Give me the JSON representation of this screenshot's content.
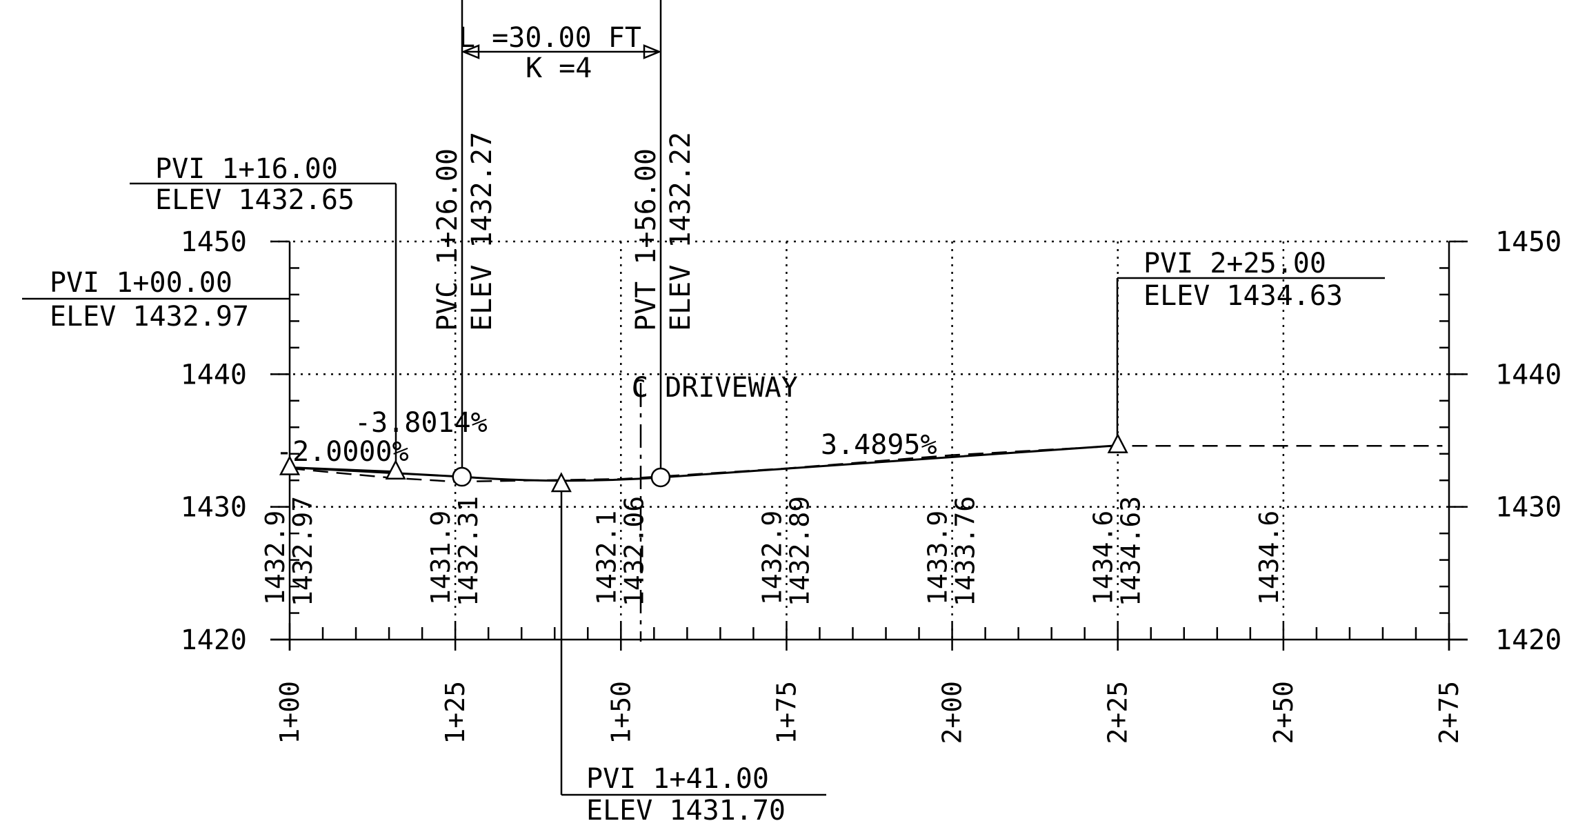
{
  "vertical_curve": {
    "length_label": "L =30.00 FT",
    "k_label": "K =4"
  },
  "pvis": [
    {
      "station_label": "PVI 1+16.00",
      "elev_label": "ELEV 1432.65",
      "station": 116.0,
      "elev": 1432.65
    },
    {
      "station_label": "PVI 1+00.00",
      "elev_label": "ELEV 1432.97",
      "station": 100.0,
      "elev": 1432.97
    },
    {
      "station_label": "PVI 2+25.00",
      "elev_label": "ELEV 1434.63",
      "station": 225.0,
      "elev": 1434.63
    },
    {
      "station_label": "PVI 1+41.00",
      "elev_label": "ELEV 1431.70",
      "station": 141.0,
      "elev": 1431.7
    }
  ],
  "pvc": {
    "label": "PVC 1+26.00",
    "elev_label": "ELEV 1432.27",
    "station": 126.0,
    "elev": 1432.27
  },
  "pvt": {
    "label": "PVT 1+56.00",
    "elev_label": "ELEV 1432.22",
    "station": 156.0,
    "elev": 1432.22
  },
  "centerline_label": "C DRIVEWAY",
  "centerline_station": 152.0,
  "grades": {
    "g1": "-2.0000%",
    "g2": "-3.8014%",
    "g3": "3.4895%"
  },
  "chart_data": {
    "type": "line",
    "x_range": [
      100,
      275
    ],
    "y_range": [
      1420,
      1450
    ],
    "y_ticks": [
      "1420",
      "1430",
      "1440",
      "1450"
    ],
    "x_ticks": [
      "1+00",
      "1+25",
      "1+50",
      "1+75",
      "2+00",
      "2+25",
      "2+50",
      "2+75"
    ],
    "x_tick_values": [
      100,
      125,
      150,
      175,
      200,
      225,
      250,
      275
    ],
    "grid": true,
    "proposed_profile": [
      {
        "station": 100,
        "elev": 1432.97
      },
      {
        "station": 126,
        "elev": 1432.27
      },
      {
        "station": 141,
        "elev": 1431.7
      },
      {
        "station": 156,
        "elev": 1432.22
      },
      {
        "station": 225,
        "elev": 1434.63
      }
    ],
    "existing_ground": [
      {
        "station": 100,
        "elev": 1432.9
      },
      {
        "station": 115,
        "elev": 1432.2
      },
      {
        "station": 125,
        "elev": 1431.9
      },
      {
        "station": 150,
        "elev": 1432.1
      },
      {
        "station": 175,
        "elev": 1432.9
      },
      {
        "station": 200,
        "elev": 1433.9
      },
      {
        "station": 225,
        "elev": 1434.6
      },
      {
        "station": 250,
        "elev": 1434.6
      },
      {
        "station": 274,
        "elev": 1434.6
      }
    ],
    "elevation_labels": [
      {
        "station": 100,
        "existing": "1432.9",
        "proposed": "1432.97"
      },
      {
        "station": 125,
        "existing": "1431.9",
        "proposed": "1432.31"
      },
      {
        "station": 150,
        "existing": "1432.1",
        "proposed": "1432.06"
      },
      {
        "station": 175,
        "existing": "1432.9",
        "proposed": "1432.89"
      },
      {
        "station": 200,
        "existing": "1433.9",
        "proposed": "1433.76"
      },
      {
        "station": 225,
        "existing": "1434.6",
        "proposed": "1434.63"
      },
      {
        "station": 250,
        "existing": "1434.6",
        "proposed": ""
      }
    ]
  }
}
